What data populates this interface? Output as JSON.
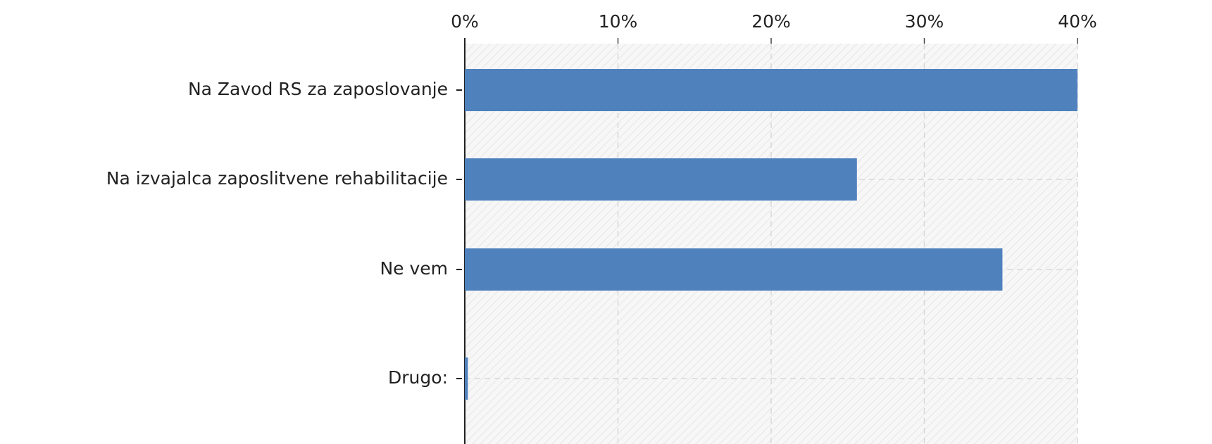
{
  "chart_data": {
    "type": "bar",
    "orientation": "horizontal",
    "categories": [
      "Na Zavod RS za zaposlovanje",
      "Na izvajalca zaposlitvene rehabilitacije",
      "Ne vem",
      "Drugo:"
    ],
    "values": [
      40,
      25.6,
      35.1,
      0.2
    ],
    "color": "#4f81bd",
    "xlim": [
      0,
      40
    ],
    "xticks": [
      {
        "value": 0,
        "label": "0%"
      },
      {
        "value": 10,
        "label": "10%"
      },
      {
        "value": 20,
        "label": "20%"
      },
      {
        "value": 30,
        "label": "30%"
      },
      {
        "value": 40,
        "label": "40%"
      }
    ],
    "grid": true
  }
}
